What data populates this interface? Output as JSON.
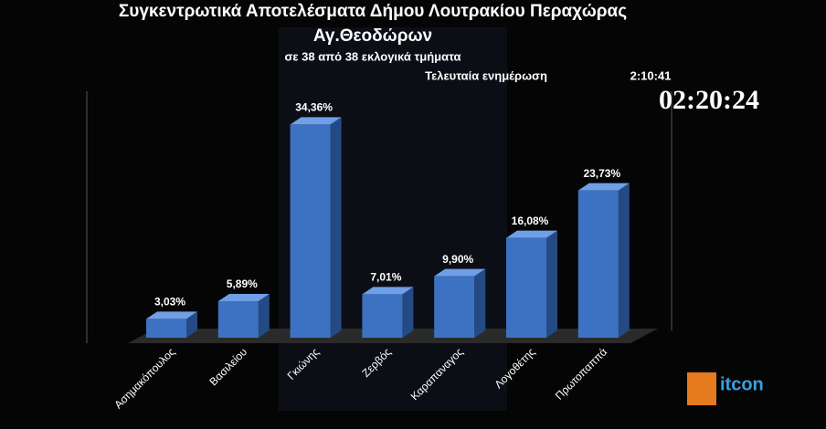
{
  "chart_data": {
    "type": "bar",
    "title": "Συγκεντρωτικά Αποτελέσματα  Δήμου Λουτρακίου Περαχώρας",
    "subtitle": "Αγ.Θεοδώρων",
    "coverage": "σε 38 από 38 εκλογικά τμήματα",
    "update_label": "Τελευταία ενημέρωση",
    "update_time": "2:10:41",
    "clock": "02:20:24",
    "logo": "itcon",
    "categories": [
      "Ασημακόπουλος",
      "Βασιλείου",
      "Γκιώνης",
      "Ζερβός",
      "Καραπαναγος",
      "Λογοθέτης",
      "Πρωτοπαππά"
    ],
    "values": [
      3.03,
      5.89,
      34.36,
      7.01,
      9.9,
      16.08,
      23.73
    ],
    "value_labels": [
      "3,03%",
      "5,89%",
      "34,36%",
      "7,01%",
      "9,90%",
      "16,08%",
      "23,73%"
    ],
    "color": "#3d72c2"
  }
}
